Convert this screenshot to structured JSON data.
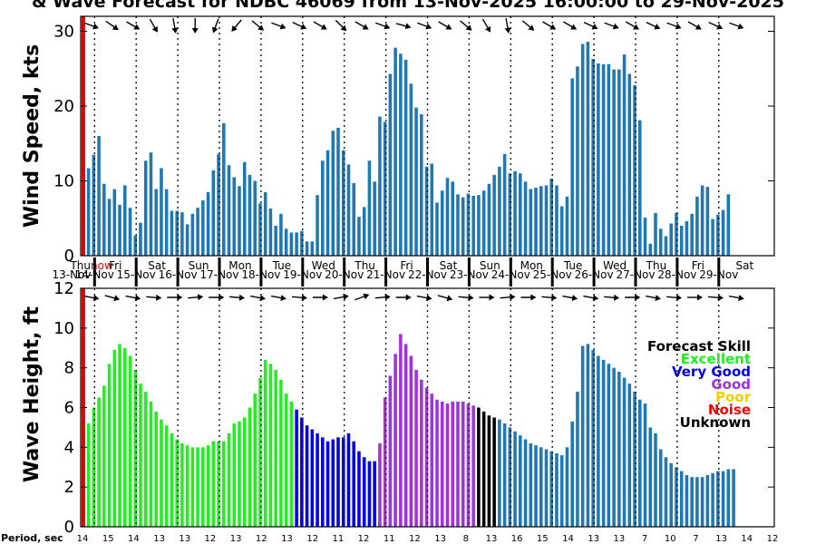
{
  "title": "& Wave Forecast for NDBC 46069 from 13-Nov-2025 16:00:00 to 29-Nov-2025",
  "colors": {
    "wind_bar": "#1f77b4",
    "now_line": "#e00000",
    "excellent": "#22ee22",
    "very_good": "#0000ee",
    "good": "#a030e0",
    "poor": "#f0d000",
    "noise": "#ff0000",
    "unknown": "#000000",
    "legend_title": "#000000"
  },
  "now_label": {
    "text1": "Thu",
    "text2": "now"
  },
  "days": [
    {
      "name": "Fri",
      "date": "14-Nov"
    },
    {
      "name": "Sat",
      "date": "15-Nov"
    },
    {
      "name": "Sun",
      "date": "16-Nov"
    },
    {
      "name": "Mon",
      "date": "17-Nov"
    },
    {
      "name": "Tue",
      "date": "18-Nov"
    },
    {
      "name": "Wed",
      "date": "19-Nov"
    },
    {
      "name": "Thu",
      "date": "20-Nov"
    },
    {
      "name": "Fri",
      "date": "21-Nov"
    },
    {
      "name": "Sat",
      "date": "22-Nov"
    },
    {
      "name": "Sun",
      "date": "23-Nov"
    },
    {
      "name": "Mon",
      "date": "24-Nov"
    },
    {
      "name": "Tue",
      "date": "25-Nov"
    },
    {
      "name": "Wed",
      "date": "26-Nov"
    },
    {
      "name": "Thu",
      "date": "27-Nov"
    },
    {
      "name": "Fri",
      "date": "28-Nov"
    },
    {
      "name": "Sat",
      "date": "29-Nov"
    }
  ],
  "first_date": "13-Nov",
  "legend": {
    "title": "Forecast Skill",
    "items": [
      {
        "label": "Excellent",
        "color": "#22ee22"
      },
      {
        "label": "Very Good",
        "color": "#0000ee"
      },
      {
        "label": "Good",
        "color": "#a030e0"
      },
      {
        "label": "Poor",
        "color": "#f0d000"
      },
      {
        "label": "Noise",
        "color": "#ff0000"
      },
      {
        "label": "Unknown",
        "color": "#000000"
      }
    ]
  },
  "period_label": "Period, sec",
  "periods": [
    "14",
    "15",
    "14",
    "13",
    "13",
    "12",
    "13",
    "12",
    "13",
    "12",
    "11",
    "12",
    "11",
    "12",
    "13",
    "8",
    "13",
    "16",
    "15",
    "14",
    "13",
    "13",
    "7",
    "10",
    "7",
    "13",
    "14",
    "12"
  ],
  "chart_data": [
    {
      "type": "bar",
      "ylabel": "Wind Speed, kts",
      "ylim": [
        0,
        32
      ],
      "yticks": [
        0,
        10,
        20,
        30
      ],
      "x_start": "2025-11-13 16:00",
      "x_step_hours": 3,
      "values": [
        11.9,
        11.7,
        13.5,
        16.0,
        9.6,
        7.6,
        8.9,
        6.8,
        9.4,
        6.4,
        2.7,
        4.4,
        12.7,
        13.8,
        8.9,
        11.7,
        8.9,
        6.0,
        6.0,
        5.8,
        4.2,
        5.6,
        6.4,
        7.4,
        8.5,
        11.4,
        13.6,
        17.7,
        12.1,
        10.5,
        9.3,
        12.5,
        10.8,
        10.0,
        7.0,
        8.5,
        6.3,
        4.0,
        5.6,
        3.6,
        3.1,
        3.1,
        3.3,
        1.9,
        1.9,
        8.1,
        12.7,
        14.1,
        16.7,
        17.1,
        14.1,
        12.2,
        9.7,
        5.2,
        6.5,
        12.7,
        9.9,
        18.6,
        17.9,
        24.3,
        27.8,
        27.0,
        26.2,
        23.0,
        19.8,
        18.9,
        11.9,
        12.3,
        7.1,
        8.7,
        10.4,
        9.9,
        8.2,
        7.8,
        8.3,
        8.0,
        8.1,
        8.7,
        9.6,
        10.8,
        11.9,
        13.6,
        11.0,
        11.3,
        11.0,
        9.9,
        8.9,
        9.1,
        9.3,
        9.4,
        10.3,
        9.4,
        6.6,
        7.9,
        23.7,
        25.3,
        28.3,
        28.6,
        26.3,
        25.7,
        25.6,
        25.6,
        24.9,
        24.9,
        26.9,
        24.3,
        22.8,
        18.1,
        5.1,
        1.6,
        5.7,
        3.6,
        2.6,
        4.3,
        5.7,
        4.0,
        4.6,
        5.6,
        7.9,
        9.4,
        9.2,
        4.9,
        5.5,
        6.1,
        8.2
      ]
    },
    {
      "type": "bar",
      "ylabel": "Wave Height, ft",
      "ylim": [
        0,
        12
      ],
      "yticks": [
        0,
        2,
        4,
        6,
        8,
        10,
        12
      ],
      "x_start": "2025-11-13 16:00",
      "x_step_hours": 3,
      "values": [
        4.6,
        5.2,
        6.0,
        6.5,
        7.1,
        8.2,
        8.9,
        9.2,
        9.0,
        8.6,
        7.9,
        7.2,
        6.8,
        6.3,
        5.8,
        5.4,
        5.1,
        4.7,
        4.4,
        4.2,
        4.1,
        4.0,
        4.0,
        4.0,
        4.1,
        4.3,
        4.3,
        4.3,
        4.7,
        5.2,
        5.3,
        5.5,
        6.0,
        6.7,
        7.5,
        8.4,
        8.2,
        7.9,
        7.4,
        6.7,
        6.3,
        5.9,
        5.5,
        5.1,
        4.9,
        4.7,
        4.5,
        4.3,
        4.4,
        4.5,
        4.5,
        4.7,
        4.3,
        3.8,
        3.5,
        3.3,
        3.3,
        4.2,
        6.5,
        7.6,
        8.7,
        9.7,
        9.2,
        8.6,
        7.9,
        7.4,
        7.0,
        6.7,
        6.4,
        6.3,
        6.2,
        6.3,
        6.3,
        6.3,
        6.2,
        6.1,
        6.0,
        5.8,
        5.6,
        5.5,
        5.4,
        5.2,
        5.0,
        4.8,
        4.6,
        4.4,
        4.2,
        4.1,
        4.0,
        3.9,
        3.8,
        3.7,
        3.6,
        4.0,
        5.3,
        6.8,
        9.1,
        9.2,
        8.9,
        8.6,
        8.4,
        8.2,
        8.0,
        7.8,
        7.5,
        7.2,
        6.8,
        6.4,
        6.2,
        5.0,
        4.7,
        3.9,
        3.5,
        3.2,
        3.0,
        2.8,
        2.6,
        2.5,
        2.5,
        2.5,
        2.6,
        2.7,
        2.8,
        2.8,
        2.9,
        2.9
      ],
      "skill": [
        "E",
        "E",
        "E",
        "E",
        "E",
        "E",
        "E",
        "E",
        "E",
        "E",
        "E",
        "E",
        "E",
        "E",
        "E",
        "E",
        "E",
        "E",
        "E",
        "E",
        "E",
        "E",
        "E",
        "E",
        "E",
        "E",
        "E",
        "E",
        "E",
        "E",
        "E",
        "E",
        "E",
        "E",
        "E",
        "E",
        "E",
        "E",
        "E",
        "E",
        "E",
        "V",
        "V",
        "V",
        "V",
        "V",
        "V",
        "V",
        "V",
        "V",
        "V",
        "V",
        "V",
        "V",
        "V",
        "V",
        "V",
        "G",
        "G",
        "G",
        "G",
        "G",
        "G",
        "G",
        "G",
        "G",
        "G",
        "G",
        "G",
        "G",
        "G",
        "G",
        "G",
        "G",
        "G",
        "G",
        "U",
        "U",
        "U",
        "U",
        "X",
        "X",
        "X",
        "X",
        "X",
        "X",
        "X",
        "X",
        "X",
        "X",
        "X",
        "X",
        "X",
        "X",
        "X",
        "X",
        "X",
        "X",
        "X",
        "X",
        "X",
        "X",
        "X",
        "X",
        "X",
        "X",
        "X",
        "X",
        "X",
        "X",
        "X",
        "X",
        "X",
        "X",
        "X",
        "X",
        "X",
        "X",
        "X",
        "X",
        "X",
        "X",
        "X",
        "X",
        "X",
        "X",
        "X"
      ]
    }
  ]
}
